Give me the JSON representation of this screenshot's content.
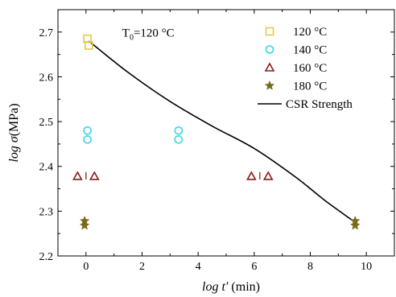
{
  "chart_data": {
    "type": "scatter",
    "xlabel": "log t′ (min)",
    "ylabel": "log σ (MPa)",
    "xlim": [
      -1,
      11
    ],
    "ylim": [
      2.2,
      2.75
    ],
    "x_ticks": [
      0,
      2,
      4,
      6,
      8,
      10
    ],
    "y_ticks": [
      2.2,
      2.3,
      2.4,
      2.5,
      2.6,
      2.7
    ],
    "x_tick_labels": [
      "0",
      "2",
      "4",
      "6",
      "8",
      "10"
    ],
    "y_tick_labels": [
      "2.2",
      "2.3",
      "2.4",
      "2.5",
      "2.6",
      "2.7"
    ],
    "grid": false,
    "legend_position": "top-right",
    "annotation": {
      "text_main": "T",
      "text_sub": "0",
      "text_rest": "=120 °C",
      "x": 3.3,
      "y": 2.69
    },
    "series": [
      {
        "name": "120 °C",
        "marker": "square",
        "color": "#e8c84a",
        "points": [
          [
            0.05,
            2.685
          ],
          [
            0.1,
            2.67
          ]
        ]
      },
      {
        "name": "140 °C",
        "marker": "circle",
        "color": "#4dd9e6",
        "points": [
          [
            0.05,
            2.48
          ],
          [
            0.05,
            2.46
          ],
          [
            3.3,
            2.48
          ],
          [
            3.3,
            2.46
          ]
        ]
      },
      {
        "name": "160 °C",
        "marker": "triangle",
        "color": "#8b1a1a",
        "points": [
          [
            -0.3,
            2.378
          ],
          [
            0.3,
            2.378
          ],
          [
            5.9,
            2.378
          ],
          [
            6.5,
            2.378
          ]
        ]
      },
      {
        "name": "180 °C",
        "marker": "star",
        "color": "#7a6a1e",
        "points": [
          [
            -0.05,
            2.278
          ],
          [
            -0.05,
            2.268
          ],
          [
            9.6,
            2.278
          ],
          [
            9.6,
            2.268
          ]
        ]
      },
      {
        "name": "CSR Strength",
        "type": "line",
        "color": "#000000",
        "points": [
          [
            0.1,
            2.68
          ],
          [
            1.5,
            2.61
          ],
          [
            3,
            2.545
          ],
          [
            4.5,
            2.49
          ],
          [
            6,
            2.44
          ],
          [
            7.5,
            2.375
          ],
          [
            8.5,
            2.325
          ],
          [
            9.6,
            2.275
          ]
        ]
      }
    ],
    "marker_ticks": [
      {
        "x": 0,
        "y": 2.378
      },
      {
        "x": 6.2,
        "y": 2.378
      }
    ]
  }
}
